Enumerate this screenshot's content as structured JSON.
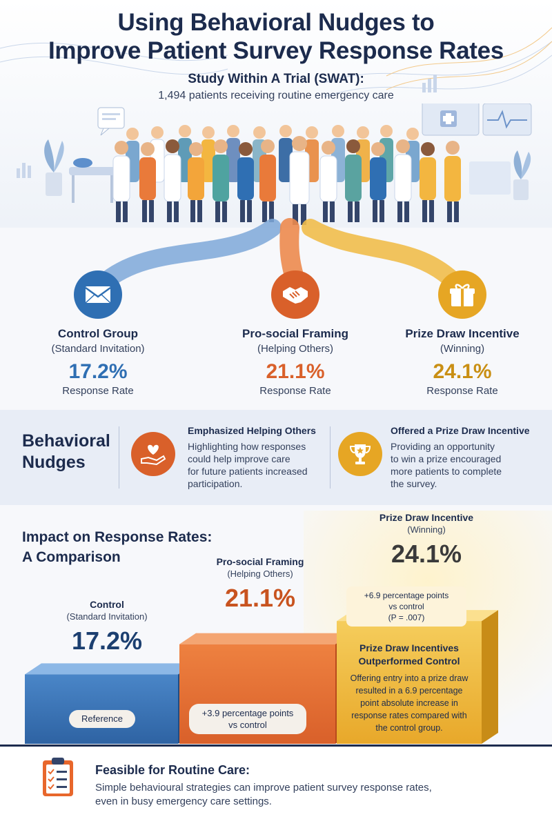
{
  "header": {
    "title_line1": "Using Behavioral Nudges to",
    "title_line2": "Improve Patient Survey Response Rates",
    "subtitle": "Study Within A Trial (SWAT):",
    "description": "1,494 patients receiving routine emergency care"
  },
  "groups": [
    {
      "name": "Control Group",
      "sub": "(Standard Invitation)",
      "value": "17.2%",
      "label": "Response Rate",
      "icon": "envelope-icon",
      "color": "#2f6fb3"
    },
    {
      "name": "Pro-social Framing",
      "sub": "(Helping Others)",
      "value": "21.1%",
      "label": "Response Rate",
      "icon": "handshake-icon",
      "color": "#d9602a"
    },
    {
      "name": "Prize Draw Incentive",
      "sub": "(Winning)",
      "value": "24.1%",
      "label": "Response Rate",
      "icon": "gift-icon",
      "color": "#c98f14"
    }
  ],
  "nudges": {
    "title_line1": "Behavioral",
    "title_line2": "Nudges",
    "items": [
      {
        "heading": "Emphasized Helping Others",
        "line1": "Highlighting how responses",
        "line2": "could help improve care",
        "line3": "for future patients increased",
        "line4": "participation.",
        "icon": "heart-hand-icon"
      },
      {
        "heading": "Offered a Prize Draw Incentive",
        "line1": "Providing an opportunity",
        "line2": "to win a prize encouraged",
        "line3": "more patients to complete",
        "line4": "the survey.",
        "icon": "trophy-icon"
      }
    ]
  },
  "impact": {
    "title_line1": "Impact on Response Rates:",
    "title_line2": "A Comparison",
    "bars": [
      {
        "name": "Control",
        "sub": "(Standard Invitation)",
        "value": "17.2%",
        "pill": "Reference"
      },
      {
        "name": "Pro-social Framing",
        "sub": "(Helping Others)",
        "value": "21.1%",
        "pill_line1": "+3.9 percentage points",
        "pill_line2": "vs control"
      },
      {
        "name": "Prize Draw Incentive",
        "sub": "(Winning)",
        "value": "24.1%",
        "note_line1": "+6.9 percentage points",
        "note_line2": "vs control",
        "note_line3": "(P = .007)"
      }
    ],
    "conclusion_heading_line1": "Prize Draw Incentives",
    "conclusion_heading_line2": "Outperformed Control",
    "conclusion_line1": "Offering entry into a prize draw",
    "conclusion_line2": "resulted in a 6.9 percentage",
    "conclusion_line3": "point absolute increase in",
    "conclusion_line4": "response rates compared with",
    "conclusion_line5": "the control group."
  },
  "chart_data": {
    "type": "bar",
    "categories": [
      "Control",
      "Pro-social Framing",
      "Prize Draw Incentive"
    ],
    "values": [
      17.2,
      21.1,
      24.1
    ],
    "title": "Impact on Response Rates: A Comparison",
    "xlabel": "",
    "ylabel": ""
  },
  "footer": {
    "heading": "Feasible for Routine Care:",
    "body": "Simple behavioural strategies can improve patient survey response rates, even in busy emergency care settings.",
    "icon": "clipboard-checklist-icon"
  },
  "colors": {
    "navy": "#1c2b4d",
    "blue": "#2f6fb3",
    "orange": "#d9602a",
    "gold": "#c98f14",
    "panel": "#e8edf6"
  }
}
